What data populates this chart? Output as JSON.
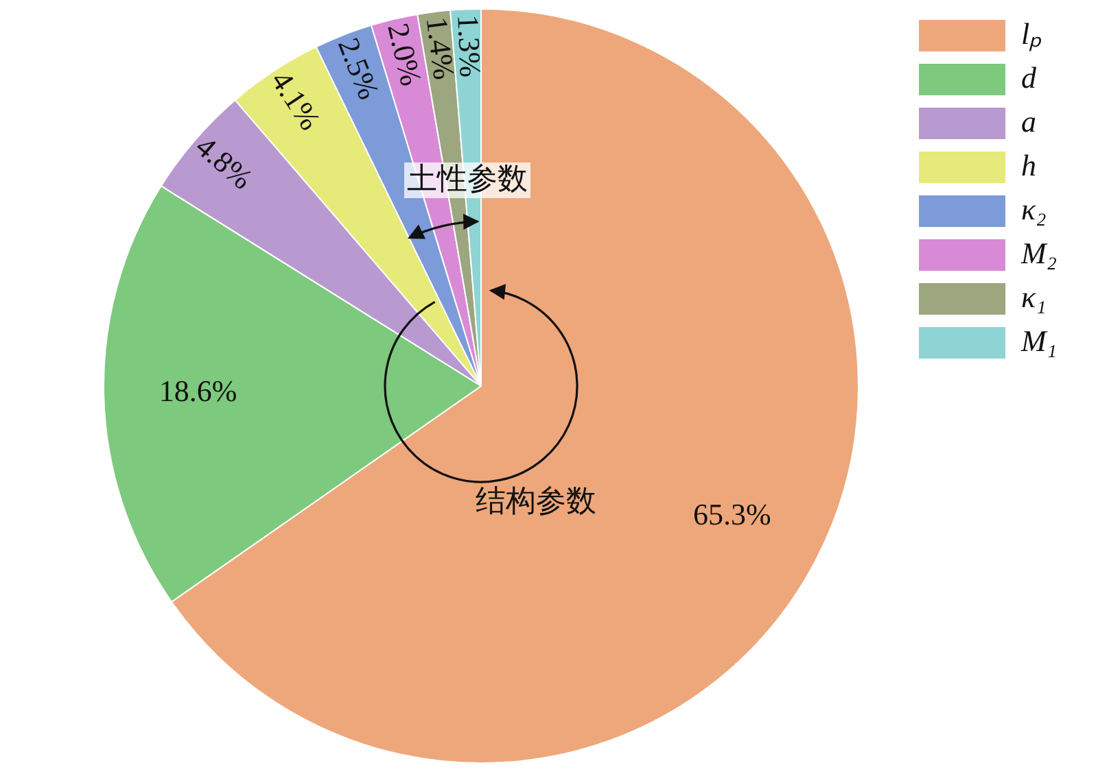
{
  "chart_data": {
    "type": "pie",
    "categories": [
      "lₚ",
      "d",
      "a",
      "h",
      "κ₂",
      "M₂",
      "κ₁",
      "M₁"
    ],
    "values": [
      65.3,
      18.6,
      4.8,
      4.1,
      2.5,
      2.0,
      1.4,
      1.3
    ],
    "colors": [
      "#eea77a",
      "#7dc97d",
      "#b89ad0",
      "#e6ea78",
      "#7c9bd8",
      "#d98ad6",
      "#9ca67f",
      "#8ed4d4"
    ],
    "value_labels": [
      "65.3%",
      "18.6%",
      "4.8%",
      "4.1%",
      "2.5%",
      "2.0%",
      "1.4%",
      "1.3%"
    ],
    "annotations": [
      "土性参数",
      "结构参数"
    ],
    "legend": "top right"
  }
}
